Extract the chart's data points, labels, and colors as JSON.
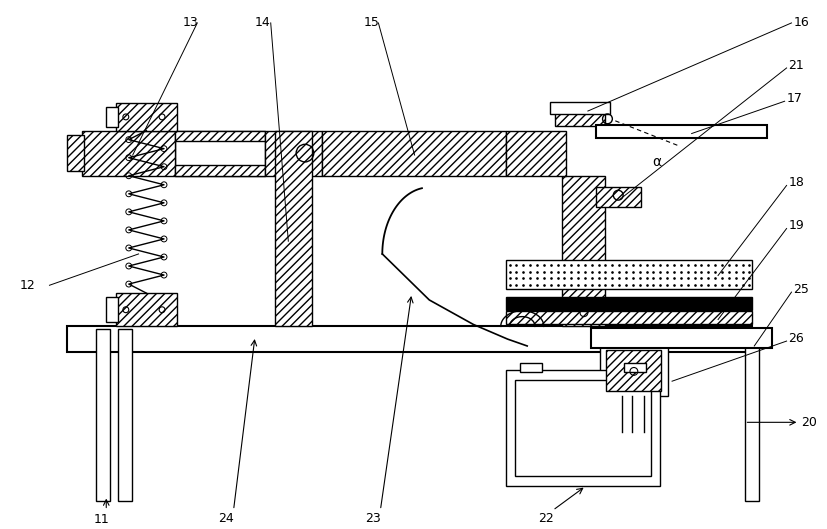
{
  "figure_width": 8.27,
  "figure_height": 5.29,
  "dpi": 100,
  "bg_color": "#ffffff",
  "line_color": "#000000",
  "labels": [
    "11",
    "12",
    "13",
    "14",
    "15",
    "16",
    "17",
    "18",
    "19",
    "20",
    "21",
    "22",
    "23",
    "24",
    "25",
    "26"
  ]
}
